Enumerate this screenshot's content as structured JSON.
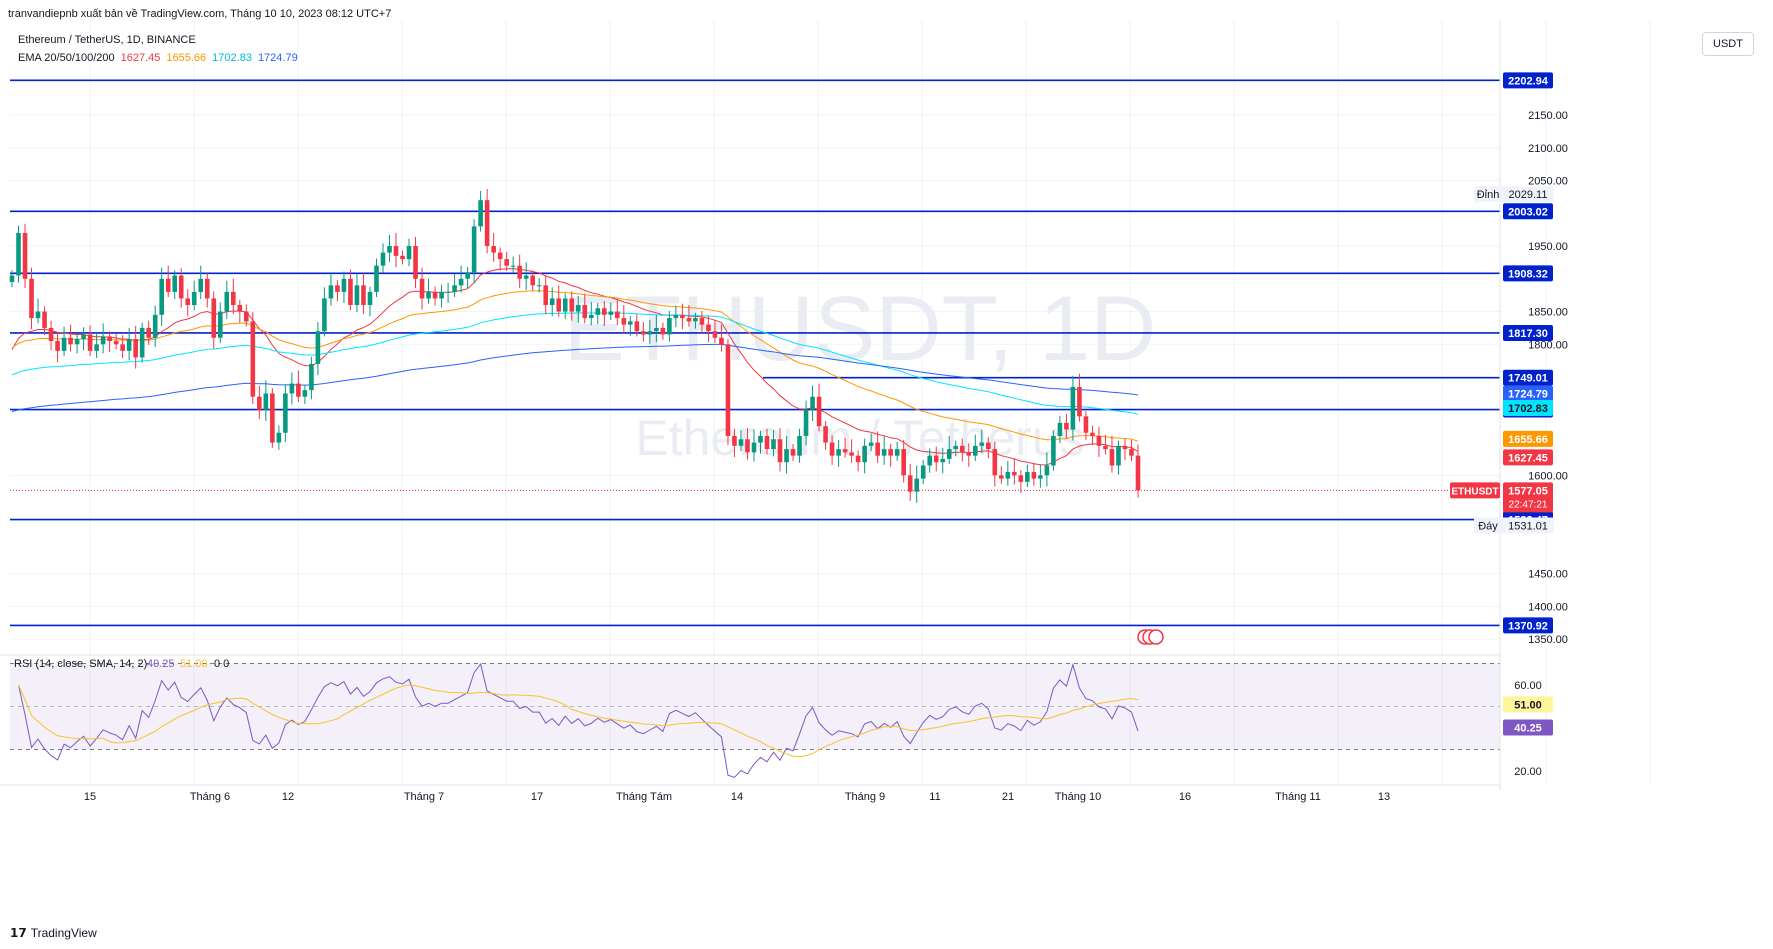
{
  "header": {
    "publisher": "tranvandiepnb xuất bản về TradingView.com, Tháng 10 10, 2023 08:12 UTC+7",
    "symbol_line": "Ethereum / TetherUS, 1D, BINANCE",
    "ema_label": "EMA 20/50/100/200",
    "ema_values": [
      "1627.45",
      "1655.66",
      "1702.83",
      "1724.79"
    ]
  },
  "currency_button": "USDT",
  "watermark": {
    "line1": "ETHUSDT, 1D",
    "line2": "Ethereum / Tetherus"
  },
  "colors": {
    "up": "#089981",
    "down": "#f23645",
    "ema20": "#f23645",
    "ema50": "#ff9800",
    "ema100": "#00e5ff",
    "ema200": "#2962ff",
    "level": "#0022cc",
    "rsi": "#7e57c2",
    "rsi_sma": "#fbc02d"
  },
  "chart_data": {
    "type": "candlestick",
    "title": "Ethereum / TetherUS, 1D, BINANCE",
    "y_ticks": [
      "2150.00",
      "2100.00",
      "2050.00",
      "1950.00",
      "1850.00",
      "1800.00",
      "1600.00",
      "1450.00",
      "1400.00",
      "1350.00"
    ],
    "x_ticks": [
      "15",
      "Tháng 6",
      "12",
      "Tháng 7",
      "17",
      "Tháng Tám",
      "14",
      "Tháng 9",
      "11",
      "21",
      "Tháng 10",
      "16",
      "Tháng 11",
      "13"
    ],
    "horizontal_levels": [
      "2202.94",
      "2003.02",
      "1908.32",
      "1817.30",
      "1749.01",
      "1700.41",
      "1532.47",
      "1370.92"
    ],
    "ema_labels": [
      {
        "value": "1724.79",
        "color": "#2962ff"
      },
      {
        "value": "1702.83",
        "color": "#00e5ff"
      },
      {
        "value": "1655.66",
        "color": "#ff9800"
      },
      {
        "value": "1627.45",
        "color": "#f23645"
      }
    ],
    "last_price": {
      "symbol": "ETHUSDT",
      "price": "1577.05",
      "countdown": "22:47:21"
    },
    "high": {
      "label": "Đỉnh",
      "value": "2029.11"
    },
    "low": {
      "label": "Đáy",
      "value": "1531.01"
    },
    "closes": [
      1905,
      1970,
      1900,
      1840,
      1850,
      1825,
      1805,
      1790,
      1810,
      1800,
      1808,
      1815,
      1790,
      1800,
      1812,
      1805,
      1800,
      1790,
      1808,
      1780,
      1825,
      1810,
      1845,
      1900,
      1880,
      1905,
      1870,
      1860,
      1880,
      1900,
      1870,
      1810,
      1850,
      1880,
      1860,
      1850,
      1835,
      1720,
      1700,
      1725,
      1650,
      1665,
      1725,
      1740,
      1720,
      1730,
      1770,
      1820,
      1870,
      1890,
      1880,
      1900,
      1860,
      1890,
      1860,
      1880,
      1920,
      1940,
      1950,
      1935,
      1930,
      1950,
      1900,
      1870,
      1880,
      1870,
      1880,
      1880,
      1890,
      1900,
      1910,
      1980,
      2020,
      1950,
      1940,
      1930,
      1920,
      1920,
      1900,
      1905,
      1890,
      1890,
      1860,
      1870,
      1850,
      1870,
      1850,
      1860,
      1840,
      1845,
      1855,
      1845,
      1850,
      1840,
      1830,
      1835,
      1820,
      1815,
      1820,
      1825,
      1815,
      1840,
      1845,
      1840,
      1835,
      1840,
      1830,
      1820,
      1810,
      1800,
      1660,
      1645,
      1655,
      1635,
      1650,
      1660,
      1640,
      1655,
      1620,
      1640,
      1630,
      1660,
      1700,
      1720,
      1675,
      1650,
      1630,
      1640,
      1635,
      1630,
      1620,
      1645,
      1650,
      1630,
      1640,
      1630,
      1640,
      1600,
      1575,
      1595,
      1615,
      1630,
      1620,
      1625,
      1640,
      1645,
      1635,
      1630,
      1645,
      1650,
      1640,
      1600,
      1595,
      1605,
      1600,
      1590,
      1605,
      1595,
      1600,
      1615,
      1660,
      1680,
      1670,
      1735,
      1690,
      1665,
      1660,
      1645,
      1640,
      1615,
      1645,
      1640,
      1630,
      1577
    ],
    "rsi": {
      "label": "RSI (14, close, SMA, 14, 2)",
      "value": "40.25",
      "sma_value": "51.00",
      "extra": "0",
      "y_ticks": [
        "60.00",
        "20.00"
      ],
      "upper": 70,
      "middle": 50,
      "lower": 30
    }
  },
  "branding": "TradingView"
}
